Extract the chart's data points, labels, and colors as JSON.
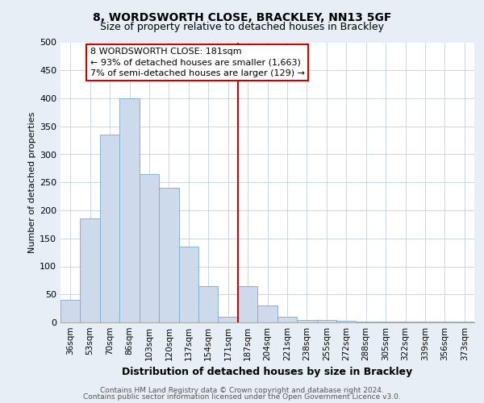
{
  "title": "8, WORDSWORTH CLOSE, BRACKLEY, NN13 5GF",
  "subtitle": "Size of property relative to detached houses in Brackley",
  "xlabel": "Distribution of detached houses by size in Brackley",
  "ylabel": "Number of detached properties",
  "footer_line1": "Contains HM Land Registry data © Crown copyright and database right 2024.",
  "footer_line2": "Contains public sector information licensed under the Open Government Licence v3.0.",
  "bar_labels": [
    "36sqm",
    "53sqm",
    "70sqm",
    "86sqm",
    "103sqm",
    "120sqm",
    "137sqm",
    "154sqm",
    "171sqm",
    "187sqm",
    "204sqm",
    "221sqm",
    "238sqm",
    "255sqm",
    "272sqm",
    "288sqm",
    "305sqm",
    "322sqm",
    "339sqm",
    "356sqm",
    "373sqm"
  ],
  "bar_values": [
    40,
    185,
    335,
    400,
    265,
    240,
    135,
    65,
    10,
    65,
    30,
    10,
    5,
    5,
    3,
    2,
    1,
    1,
    1,
    1,
    2
  ],
  "bar_color": "#ccdaeb",
  "bar_edge_color": "#7aaace",
  "vline_color": "#cc0000",
  "vline_pos": 8.5,
  "annotation_text": "8 WORDSWORTH CLOSE: 181sqm\n← 93% of detached houses are smaller (1,663)\n7% of semi-detached houses are larger (129) →",
  "annotation_box_color": "#cc0000",
  "ylim": [
    0,
    500
  ],
  "yticks": [
    0,
    50,
    100,
    150,
    200,
    250,
    300,
    350,
    400,
    450,
    500
  ],
  "bg_color": "#e8eef5",
  "plot_bg_color": "#ffffff",
  "grid_color": "#c5cfd9",
  "title_fontsize": 10,
  "subtitle_fontsize": 9,
  "ylabel_fontsize": 8,
  "xlabel_fontsize": 9,
  "tick_fontsize": 8,
  "xtick_fontsize": 7.5,
  "ann_fontsize": 8,
  "footer_fontsize": 6.5
}
